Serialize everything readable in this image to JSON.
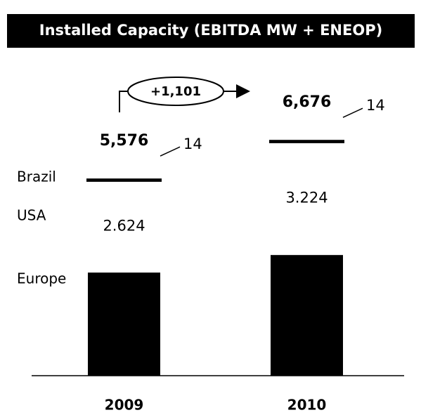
{
  "chart_data": {
    "type": "stacked-bar",
    "title": "Installed Capacity (EBITDA MW + ENEOP)",
    "categories": [
      "2009",
      "2010"
    ],
    "series": [
      {
        "name": "Europe",
        "color": "#000000",
        "values": [
          2938,
          3438
        ]
      },
      {
        "name": "USA",
        "color": "#ffffff",
        "values": [
          2624,
          3224
        ],
        "value_labels": [
          "2.624",
          "3.224"
        ]
      },
      {
        "name": "Brazil",
        "color": "#000000",
        "values": [
          14,
          14
        ],
        "value_labels": [
          "14",
          "14"
        ]
      }
    ],
    "totals": [
      5576,
      6676
    ],
    "total_labels": [
      "5,576",
      "6,676"
    ],
    "change": {
      "value": 1101,
      "label": "+1,101"
    }
  }
}
